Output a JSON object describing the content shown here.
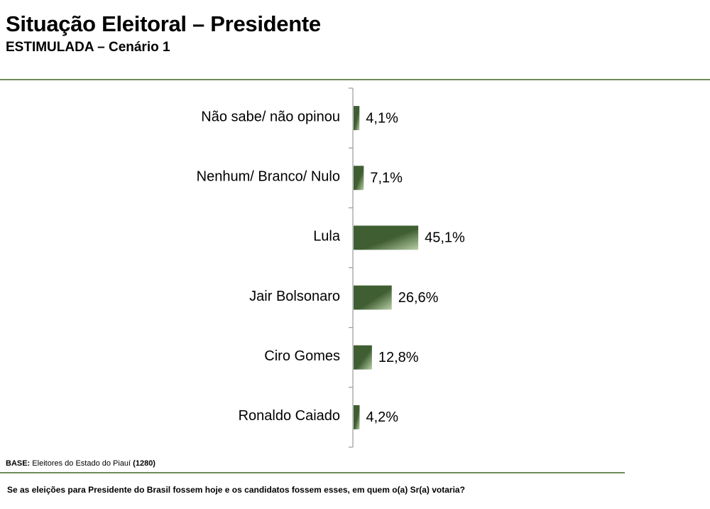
{
  "header": {
    "title": "Situação Eleitoral – Presidente",
    "subtitle": "ESTIMULADA – Cenário 1"
  },
  "footer": {
    "base_label": "BASE:",
    "base_text": "Eleitores do Estado do Piauí",
    "base_count": "(1280)",
    "question": "Se as eleições para Presidente do Brasil fossem hoje e os candidatos fossem esses, em quem o(a) Sr(a) votaria?"
  },
  "colors": {
    "bar_dark": "#3f5e31",
    "bar_light": "#b9cfa8",
    "rule": "#6e8c5a",
    "axis": "#999999"
  },
  "chart_data": {
    "type": "bar",
    "orientation": "horizontal",
    "categories": [
      "Não sabe/ não opinou",
      "Nenhum/ Branco/ Nulo",
      "Lula",
      "Jair Bolsonaro",
      "Ciro Gomes",
      "Ronaldo Caiado"
    ],
    "values": [
      4.1,
      7.1,
      45.1,
      26.6,
      12.8,
      4.2
    ],
    "labels": [
      "4,1%",
      "7,1%",
      "45,1%",
      "26,6%",
      "12,8%",
      "4,2%"
    ],
    "unit": "%",
    "xlim": [
      0,
      100
    ],
    "grid": false,
    "legend": false
  }
}
